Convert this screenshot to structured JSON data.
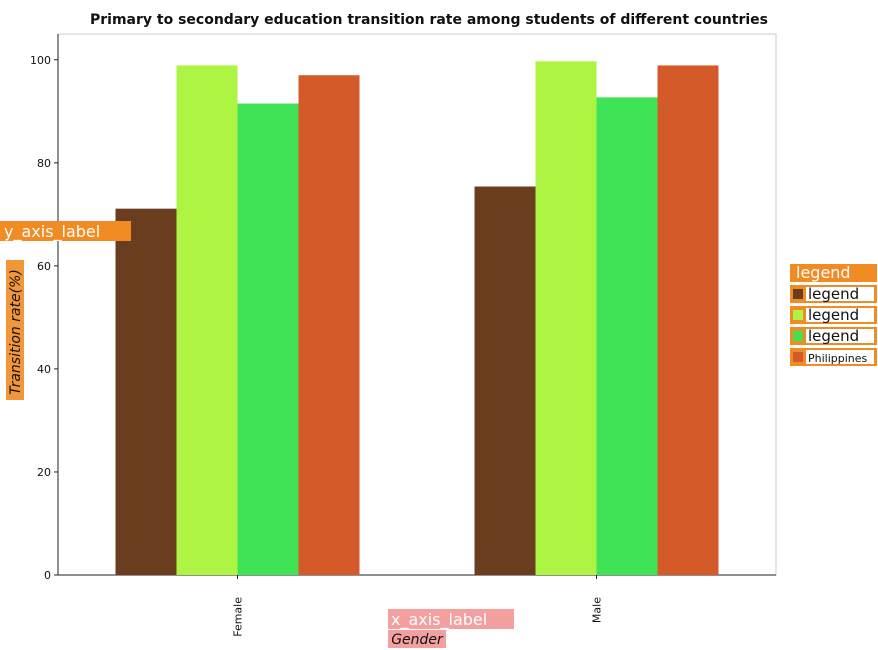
{
  "chart_data": {
    "type": "bar",
    "title": "Primary to secondary education transition rate among students of different countries",
    "xlabel": "Gender",
    "ylabel": "Transition rate(%)",
    "xlabel_tag": "x_axis_label",
    "ylabel_tag": "y_axis_label",
    "categories": [
      "Female",
      "Male"
    ],
    "ylim": [
      0,
      105
    ],
    "yticks": [
      0,
      20,
      40,
      60,
      80,
      100
    ],
    "grid": false,
    "legend_position": "right",
    "series": [
      {
        "name": "legend",
        "color": "#6b3d1f",
        "values": [
          71.1,
          75.4
        ]
      },
      {
        "name": "legend",
        "color": "#adf542",
        "values": [
          98.9,
          99.7
        ]
      },
      {
        "name": "legend",
        "color": "#40e356",
        "values": [
          91.5,
          92.7
        ]
      },
      {
        "name": "Philippines",
        "color": "#d45a2a",
        "values": [
          97.0,
          98.9
        ]
      }
    ],
    "legend_labels": [
      "legend",
      "legend",
      "legend",
      "legend",
      "Philippines"
    ]
  },
  "colors": {
    "tag_orange": "#f08c23",
    "tag_pink": "#f4a0a0"
  }
}
